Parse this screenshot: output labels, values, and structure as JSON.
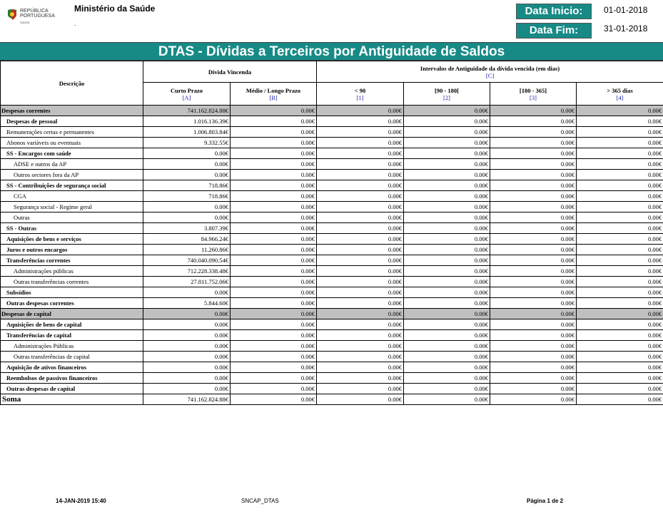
{
  "logo": {
    "line1": "REPÚBLICA",
    "line2": "PORTUGUESA",
    "line3": "SAÚDE"
  },
  "header": {
    "ministry": "Ministério da Saúde",
    "sub": ".",
    "date_start_label": "Data Inicio:",
    "date_start_value": "01-01-2018",
    "date_end_label": "Data Fim:",
    "date_end_value": "31-01-2018"
  },
  "report_title": "DTAS - Dívidas a Terceiros por Antiguidade de Saldos",
  "table": {
    "head": {
      "desc": "Descrição",
      "vincenda": "Dívida Vincenda",
      "intervalos": "Intervalos de Antiguidade da dívida vencida (em dias)",
      "intervalos_ref": "[C]",
      "cols": [
        {
          "label": "Curto Prazo",
          "ref": "[A]"
        },
        {
          "label": "Médio / Longo Prazo",
          "ref": "[B]"
        },
        {
          "label": "< 90",
          "ref": "[1]"
        },
        {
          "label": "[90 - 180[",
          "ref": "[2]"
        },
        {
          "label": "[180 - 365]",
          "ref": "[3]"
        },
        {
          "label": "> 365 dias",
          "ref": "[4]"
        }
      ]
    },
    "rows": [
      {
        "label": "Despesas correntes",
        "level": 0,
        "section": true,
        "values": [
          "741.162.824.88€",
          "0.00€",
          "0.00€",
          "0.00€",
          "0.00€",
          "0.00€"
        ]
      },
      {
        "label": "Despesas de pessoal",
        "level": 1,
        "values": [
          "1.016.136.39€",
          "0.00€",
          "0.00€",
          "0.00€",
          "0.00€",
          "0.00€"
        ]
      },
      {
        "label": "Remunerações certas e permanentes",
        "level": 2,
        "values": [
          "1.006.803.84€",
          "0.00€",
          "0.00€",
          "0.00€",
          "0.00€",
          "0.00€"
        ]
      },
      {
        "label": "Abonos variáveis ou eventuais",
        "level": 2,
        "values": [
          "9.332.55€",
          "0.00€",
          "0.00€",
          "0.00€",
          "0.00€",
          "0.00€"
        ]
      },
      {
        "label": "SS - Encargos com saúde",
        "level": 1,
        "values": [
          "0.00€",
          "0.00€",
          "0.00€",
          "0.00€",
          "0.00€",
          "0.00€"
        ]
      },
      {
        "label": "ADSE e outros da AP",
        "level": 3,
        "values": [
          "0.00€",
          "0.00€",
          "0.00€",
          "0.00€",
          "0.00€",
          "0.00€"
        ]
      },
      {
        "label": "Outros sectores fora da AP",
        "level": 3,
        "values": [
          "0.00€",
          "0.00€",
          "0.00€",
          "0.00€",
          "0.00€",
          "0.00€"
        ]
      },
      {
        "label": "SS - Contribuições de segurança social",
        "level": 1,
        "values": [
          "718.86€",
          "0.00€",
          "0.00€",
          "0.00€",
          "0.00€",
          "0.00€"
        ]
      },
      {
        "label": "CGA",
        "level": 3,
        "values": [
          "718.86€",
          "0.00€",
          "0.00€",
          "0.00€",
          "0.00€",
          "0.00€"
        ]
      },
      {
        "label": "Segurança social - Regime geral",
        "level": 3,
        "values": [
          "0.00€",
          "0.00€",
          "0.00€",
          "0.00€",
          "0.00€",
          "0.00€"
        ]
      },
      {
        "label": "Outras",
        "level": 3,
        "values": [
          "0.00€",
          "0.00€",
          "0.00€",
          "0.00€",
          "0.00€",
          "0.00€"
        ]
      },
      {
        "label": "SS - Outras",
        "level": 1,
        "values": [
          "3.807.39€",
          "0.00€",
          "0.00€",
          "0.00€",
          "0.00€",
          "0.00€"
        ]
      },
      {
        "label": "Aquisições de bens e serviços",
        "level": 1,
        "values": [
          "84.966.24€",
          "0.00€",
          "0.00€",
          "0.00€",
          "0.00€",
          "0.00€"
        ]
      },
      {
        "label": "Juros e outros encargos",
        "level": 1,
        "values": [
          "11.260.86€",
          "0.00€",
          "0.00€",
          "0.00€",
          "0.00€",
          "0.00€"
        ]
      },
      {
        "label": "Transferências correntes",
        "level": 1,
        "values": [
          "740.040.090.54€",
          "0.00€",
          "0.00€",
          "0.00€",
          "0.00€",
          "0.00€"
        ]
      },
      {
        "label": "Administrações públicas",
        "level": 3,
        "values": [
          "712.228.338.48€",
          "0.00€",
          "0.00€",
          "0.00€",
          "0.00€",
          "0.00€"
        ]
      },
      {
        "label": "Outras transferências correntes",
        "level": 3,
        "values": [
          "27.811.752.06€",
          "0.00€",
          "0.00€",
          "0.00€",
          "0.00€",
          "0.00€"
        ]
      },
      {
        "label": "Subsídios",
        "level": 1,
        "values": [
          "0.00€",
          "0.00€",
          "0.00€",
          "0.00€",
          "0.00€",
          "0.00€"
        ]
      },
      {
        "label": "Outras despesas correntes",
        "level": 1,
        "values": [
          "5.844.60€",
          "0.00€",
          "0.00€",
          "0.00€",
          "0.00€",
          "0.00€"
        ]
      },
      {
        "label": "Despesas de capital",
        "level": 0,
        "section": true,
        "values": [
          "0.00€",
          "0.00€",
          "0.00€",
          "0.00€",
          "0.00€",
          "0.00€"
        ]
      },
      {
        "label": "Aquisições de bens de capital",
        "level": 1,
        "values": [
          "0.00€",
          "0.00€",
          "0.00€",
          "0.00€",
          "0.00€",
          "0.00€"
        ]
      },
      {
        "label": "Transferências de capital",
        "level": 1,
        "values": [
          "0.00€",
          "0.00€",
          "0.00€",
          "0.00€",
          "0.00€",
          "0.00€"
        ]
      },
      {
        "label": "Administrações Públicas",
        "level": 3,
        "values": [
          "0.00€",
          "0.00€",
          "0.00€",
          "0.00€",
          "0.00€",
          "0.00€"
        ]
      },
      {
        "label": "Outras transferências de capital",
        "level": 3,
        "values": [
          "0.00€",
          "0.00€",
          "0.00€",
          "0.00€",
          "0.00€",
          "0.00€"
        ]
      },
      {
        "label": "Aquisição de ativos financeiros",
        "level": 1,
        "values": [
          "0.00€",
          "0.00€",
          "0.00€",
          "0.00€",
          "0.00€",
          "0.00€"
        ]
      },
      {
        "label": "Reembolsos de passivos financeiros",
        "level": 1,
        "values": [
          "0.00€",
          "0.00€",
          "0.00€",
          "0.00€",
          "0.00€",
          "0.00€"
        ]
      },
      {
        "label": "Outras despesas de capital",
        "level": 1,
        "values": [
          "0.00€",
          "0.00€",
          "0.00€",
          "0.00€",
          "0.00€",
          "0.00€"
        ]
      }
    ],
    "total": {
      "label": "Soma",
      "values": [
        "741.162.824.88€",
        "0.00€",
        "0.00€",
        "0.00€",
        "0.00€",
        "0.00€"
      ]
    }
  },
  "footer": {
    "timestamp": "14-JAN-2019 15:40",
    "report_code": "SNCAP_DTAS",
    "page": "Página 1 de 2"
  }
}
